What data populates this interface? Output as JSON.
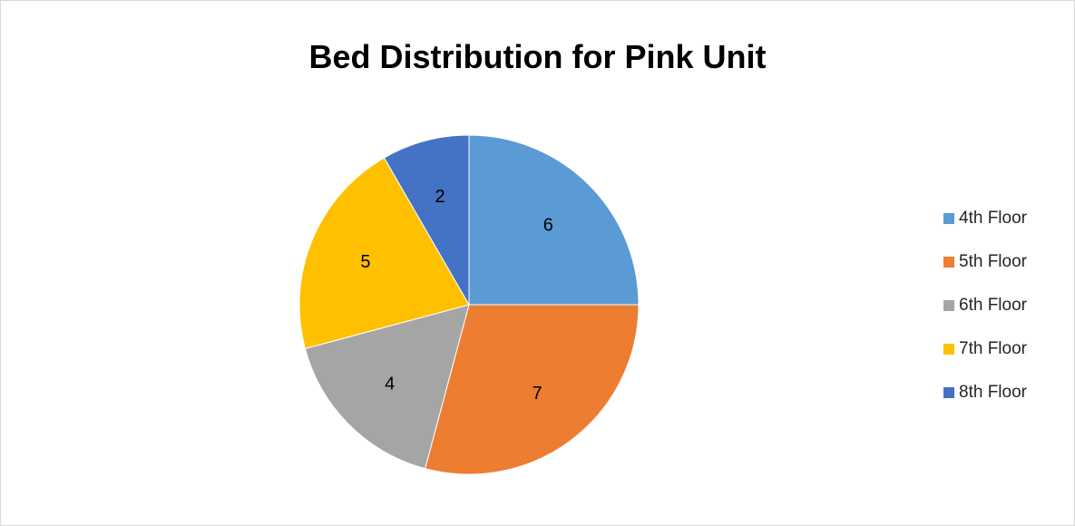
{
  "chart_data": {
    "type": "pie",
    "title": "Bed Distribution for Pink Unit",
    "categories": [
      "4th Floor",
      "5th Floor",
      "6th Floor",
      "7th Floor",
      "8th Floor"
    ],
    "values": [
      6,
      7,
      4,
      5,
      2
    ],
    "colors": [
      "#5b9bd5",
      "#ed7d31",
      "#a5a5a5",
      "#ffc000",
      "#4472c4"
    ],
    "data_labels": [
      "6",
      "7",
      "4",
      "5",
      "2"
    ],
    "legend_position": "right",
    "start_angle": "12 o'clock",
    "direction": "clockwise"
  }
}
